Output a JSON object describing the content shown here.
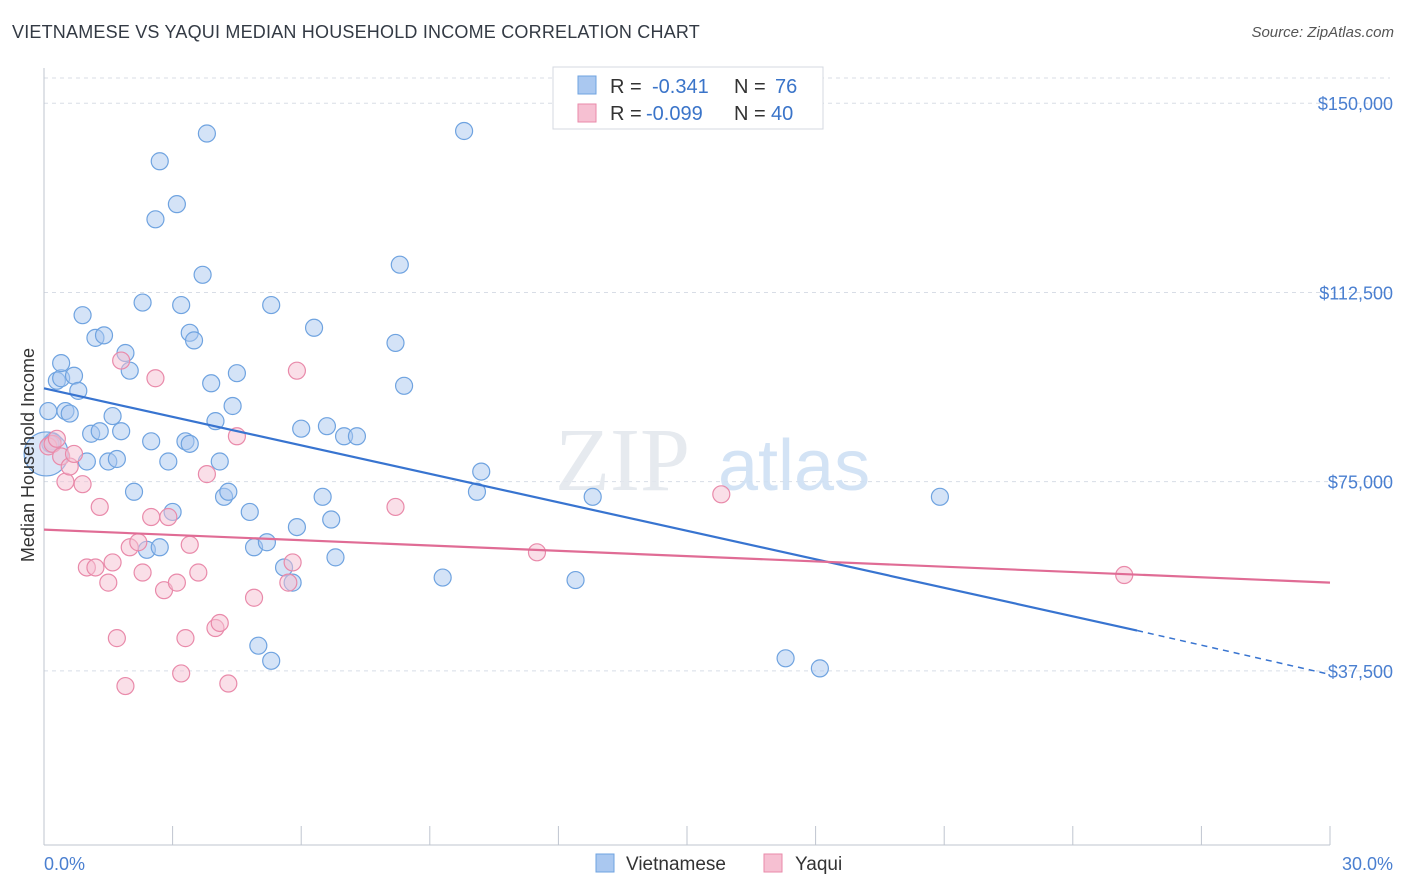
{
  "title": "VIETNAMESE VS YAQUI MEDIAN HOUSEHOLD INCOME CORRELATION CHART",
  "source": "Source: ZipAtlas.com",
  "watermark": {
    "zip": "ZIP",
    "atlas": "atlas"
  },
  "colors": {
    "vietnamese": "#6fa3e0",
    "vietnamese_fill": "#aac8f0",
    "vietnamese_line": "#3874d0",
    "yaqui": "#e98aaa",
    "yaqui_fill": "#f6c0d2",
    "yaqui_line": "#e06c95",
    "axis_text": "#4a7fd0",
    "grid": "#d8dde6"
  },
  "legend": {
    "rows": [
      {
        "series": "vietnamese",
        "r_label": "R =",
        "r_value": "-0.341",
        "n_label": "N =",
        "n_value": "76"
      },
      {
        "series": "yaqui",
        "r_label": "R =",
        "r_value": "-0.099",
        "n_label": "N =",
        "n_value": "40"
      }
    ]
  },
  "bottom_legend": [
    "Vietnamese",
    "Yaqui"
  ],
  "chart_data": {
    "type": "scatter",
    "title": "VIETNAMESE VS YAQUI MEDIAN HOUSEHOLD INCOME CORRELATION CHART",
    "xlabel": "",
    "ylabel": "Median Household Income",
    "xlim": [
      0,
      30
    ],
    "ylim": [
      3000,
      155000
    ],
    "x_tick_labels": [
      "0.0%",
      "30.0%"
    ],
    "y_ticks": [
      37500,
      75000,
      112500,
      150000
    ],
    "y_tick_labels": [
      "$37,500",
      "$75,000",
      "$112,500",
      "$150,000"
    ],
    "grid": true,
    "legend_position": "top-center",
    "series": [
      {
        "name": "Vietnamese",
        "trend": {
          "x": [
            0,
            25.5
          ],
          "y": [
            93500,
            45500
          ],
          "dashed_to": [
            30,
            36800
          ]
        },
        "points": [
          [
            0.1,
            89000
          ],
          [
            0.2,
            83000
          ],
          [
            0.3,
            95000
          ],
          [
            0.4,
            95500
          ],
          [
            0.4,
            98500
          ],
          [
            0.5,
            89000
          ],
          [
            0.6,
            88500
          ],
          [
            0.7,
            96000
          ],
          [
            0.8,
            93000
          ],
          [
            0.9,
            108000
          ],
          [
            1.0,
            79000
          ],
          [
            1.1,
            84500
          ],
          [
            1.2,
            103500
          ],
          [
            1.3,
            85000
          ],
          [
            1.4,
            104000
          ],
          [
            1.5,
            79000
          ],
          [
            1.6,
            88000
          ],
          [
            1.8,
            85000
          ],
          [
            1.9,
            100500
          ],
          [
            2.0,
            97000
          ],
          [
            2.1,
            73000
          ],
          [
            2.3,
            110500
          ],
          [
            2.4,
            61500
          ],
          [
            2.6,
            127000
          ],
          [
            2.7,
            62000
          ],
          [
            2.7,
            138500
          ],
          [
            2.9,
            79000
          ],
          [
            3.1,
            130000
          ],
          [
            3.2,
            110000
          ],
          [
            3.3,
            83000
          ],
          [
            3.4,
            82500
          ],
          [
            3.4,
            104500
          ],
          [
            3.5,
            103000
          ],
          [
            3.7,
            116000
          ],
          [
            3.8,
            144000
          ],
          [
            3.9,
            94500
          ],
          [
            4.0,
            87000
          ],
          [
            4.2,
            72000
          ],
          [
            4.3,
            73000
          ],
          [
            4.4,
            90000
          ],
          [
            4.5,
            96500
          ],
          [
            4.8,
            69000
          ],
          [
            4.9,
            62000
          ],
          [
            5.0,
            42500
          ],
          [
            5.2,
            63000
          ],
          [
            5.3,
            110000
          ],
          [
            5.3,
            39500
          ],
          [
            5.6,
            58000
          ],
          [
            5.8,
            55000
          ],
          [
            5.9,
            66000
          ],
          [
            6.0,
            85500
          ],
          [
            6.3,
            105500
          ],
          [
            6.5,
            72000
          ],
          [
            6.6,
            86000
          ],
          [
            6.7,
            67500
          ],
          [
            6.8,
            60000
          ],
          [
            7.0,
            84000
          ],
          [
            7.3,
            84000
          ],
          [
            8.2,
            102500
          ],
          [
            8.3,
            118000
          ],
          [
            8.4,
            94000
          ],
          [
            9.3,
            56000
          ],
          [
            9.8,
            144500
          ],
          [
            10.1,
            73000
          ],
          [
            10.2,
            77000
          ],
          [
            12.4,
            55500
          ],
          [
            12.8,
            72000
          ],
          [
            17.3,
            40000
          ],
          [
            18.1,
            38000
          ],
          [
            20.9,
            72000
          ],
          [
            2.5,
            83000
          ],
          [
            3.0,
            69000
          ],
          [
            1.7,
            79500
          ],
          [
            4.1,
            79000
          ],
          [
            0.15,
            82500
          ],
          [
            0.05,
            80500
          ]
        ]
      },
      {
        "name": "Yaqui",
        "trend": {
          "x": [
            0,
            30
          ],
          "y": [
            65500,
            55000
          ]
        },
        "points": [
          [
            0.1,
            82000
          ],
          [
            0.2,
            82500
          ],
          [
            0.3,
            83500
          ],
          [
            0.4,
            80000
          ],
          [
            0.5,
            75000
          ],
          [
            0.6,
            78000
          ],
          [
            0.7,
            80500
          ],
          [
            0.9,
            74500
          ],
          [
            1.0,
            58000
          ],
          [
            1.2,
            58000
          ],
          [
            1.3,
            70000
          ],
          [
            1.5,
            55000
          ],
          [
            1.6,
            59000
          ],
          [
            1.7,
            44000
          ],
          [
            1.8,
            99000
          ],
          [
            1.9,
            34500
          ],
          [
            2.0,
            62000
          ],
          [
            2.2,
            63000
          ],
          [
            2.3,
            57000
          ],
          [
            2.5,
            68000
          ],
          [
            2.6,
            95500
          ],
          [
            2.8,
            53500
          ],
          [
            2.9,
            68000
          ],
          [
            3.1,
            55000
          ],
          [
            3.2,
            37000
          ],
          [
            3.3,
            44000
          ],
          [
            3.4,
            62500
          ],
          [
            3.6,
            57000
          ],
          [
            3.8,
            76500
          ],
          [
            4.0,
            46000
          ],
          [
            4.1,
            47000
          ],
          [
            4.3,
            35000
          ],
          [
            4.5,
            84000
          ],
          [
            4.9,
            52000
          ],
          [
            5.7,
            55000
          ],
          [
            5.8,
            59000
          ],
          [
            5.9,
            97000
          ],
          [
            8.2,
            70000
          ],
          [
            11.5,
            61000
          ],
          [
            15.8,
            72500
          ]
        ]
      }
    ],
    "extra_yaqui_point": [
      25.2,
      56500
    ]
  }
}
